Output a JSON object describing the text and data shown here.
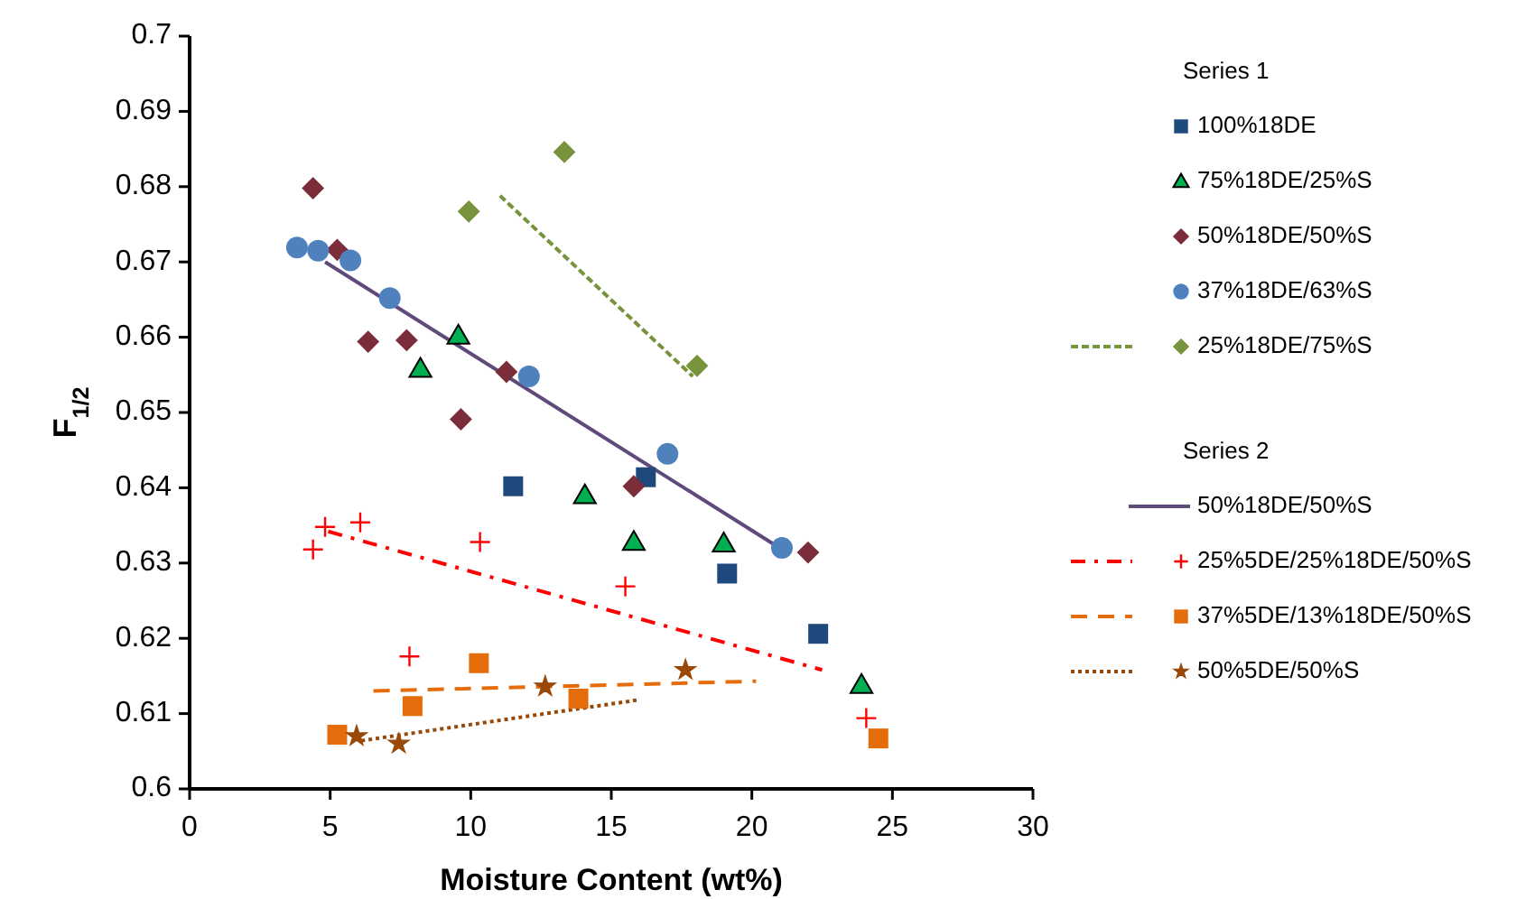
{
  "chart_data": {
    "type": "scatter",
    "xlabel": "Moisture Content (wt%)",
    "ylabel": "F$_{1/2}$",
    "xlim": [
      0,
      30
    ],
    "xticks": [
      0,
      5,
      10,
      15,
      20,
      25,
      30
    ],
    "ylim": [
      0.6,
      0.7
    ],
    "yticks": [
      0.6,
      0.61,
      0.62,
      0.63,
      0.64,
      0.65,
      0.66,
      0.67,
      0.68,
      0.69,
      0.7
    ],
    "legend": "right",
    "annotations": [
      "Series 1",
      "Series 2"
    ],
    "series": [
      {
        "name": "100%18DE",
        "marker": "square",
        "color": "#1f497d",
        "x": [
          11.51,
          16.23,
          19.12,
          22.36
        ],
        "values": [
          0.6402,
          0.6414,
          0.6286,
          0.6206
        ]
      },
      {
        "name": "75%18DE/25%S",
        "marker": "triangle",
        "color": "#00b050",
        "x": [
          8.21,
          9.56,
          14.06,
          15.8,
          19.0,
          23.9
        ],
        "values": [
          0.6558,
          0.6602,
          0.639,
          0.6328,
          0.6326,
          0.6138
        ]
      },
      {
        "name": "50%18DE/50%S",
        "marker": "diamond",
        "color": "#7b2d3a",
        "x": [
          4.39,
          5.25,
          6.35,
          7.72,
          9.65,
          11.27,
          15.8,
          22.0
        ],
        "values": [
          0.6798,
          0.6716,
          0.6594,
          0.6596,
          0.6491,
          0.6554,
          0.6402,
          0.6314
        ]
      },
      {
        "name": "37%18DE/63%S",
        "marker": "circle",
        "color": "#4f81bd",
        "x": [
          3.82,
          4.57,
          5.72,
          7.12,
          12.07,
          17.0,
          21.07
        ],
        "values": [
          0.6719,
          0.6715,
          0.6702,
          0.6652,
          0.6548,
          0.6445,
          0.632
        ]
      },
      {
        "name": "25%18DE/75%S",
        "marker": "diamond",
        "color": "#77933c",
        "x": [
          9.93,
          13.33,
          18.05
        ],
        "values": [
          0.6767,
          0.6846,
          0.6562
        ]
      },
      {
        "name": "50%18DE/50%S",
        "type": "line",
        "line_style": "solid",
        "color": "#604a7b",
        "x": [
          4.82,
          21.33
        ],
        "values": [
          0.67,
          0.6312
        ]
      },
      {
        "name": "25%5DE/25%18DE/50%S",
        "marker": "cross",
        "color": "#ff0000",
        "x": [
          4.39,
          4.82,
          6.07,
          7.82,
          10.33,
          15.5,
          24.07
        ],
        "values": [
          0.6318,
          0.6348,
          0.6354,
          0.6176,
          0.6328,
          0.6269,
          0.6094
        ]
      },
      {
        "name": "37%5DE/13%18DE/50%S",
        "marker": "square",
        "color": "#e46c0a",
        "x": [
          5.25,
          7.93,
          10.29,
          13.83,
          24.5
        ],
        "values": [
          0.6072,
          0.611,
          0.6167,
          0.612,
          0.6067
        ]
      },
      {
        "name": "50%5DE/50%S",
        "marker": "star",
        "color": "#984807",
        "x": [
          5.94,
          7.44,
          12.65,
          17.64
        ],
        "values": [
          0.607,
          0.606,
          0.6136,
          0.6158
        ]
      },
      {
        "type": "line",
        "line_style": "dashed",
        "color": "#77933c",
        "x": [
          11.04,
          17.9
        ],
        "values": [
          0.6788,
          0.6548
        ]
      },
      {
        "type": "line",
        "line_style": "dashdot",
        "color": "#ff0000",
        "x": [
          4.93,
          22.5
        ],
        "values": [
          0.6342,
          0.6158
        ]
      },
      {
        "type": "line",
        "line_style": "longdash",
        "color": "#e46c0a",
        "x": [
          6.54,
          20.15
        ],
        "values": [
          0.613,
          0.6143
        ]
      },
      {
        "type": "line",
        "line_style": "dotted",
        "color": "#984807",
        "x": [
          6.11,
          15.93
        ],
        "values": [
          0.6064,
          0.6118
        ]
      }
    ]
  }
}
